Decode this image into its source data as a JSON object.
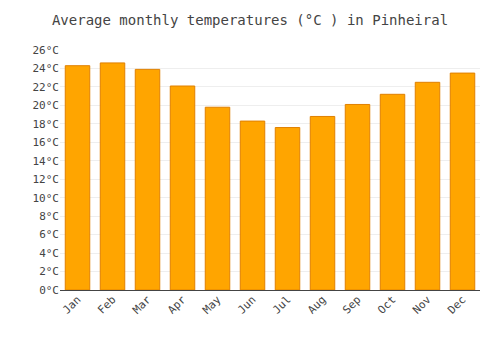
{
  "chart_data": {
    "type": "bar",
    "title": "Average monthly temperatures (°C ) in Pinheiral",
    "categories": [
      "Jan",
      "Feb",
      "Mar",
      "Apr",
      "May",
      "Jun",
      "Jul",
      "Aug",
      "Sep",
      "Oct",
      "Nov",
      "Dec"
    ],
    "values": [
      24.3,
      24.6,
      23.9,
      22.1,
      19.8,
      18.3,
      17.6,
      18.8,
      20.1,
      21.2,
      22.5,
      23.5
    ],
    "color": "#FFA500",
    "ylim": [
      0,
      26
    ],
    "yticks": [
      {
        "value": 0,
        "label": "0°C"
      },
      {
        "value": 2,
        "label": "2°C"
      },
      {
        "value": 4,
        "label": "4°C"
      },
      {
        "value": 6,
        "label": "6°C"
      },
      {
        "value": 8,
        "label": "8°C"
      },
      {
        "value": 10,
        "label": "10°C"
      },
      {
        "value": 12,
        "label": "12°C"
      },
      {
        "value": 14,
        "label": "14°C"
      },
      {
        "value": 16,
        "label": "16°C"
      },
      {
        "value": 18,
        "label": "18°C"
      },
      {
        "value": 20,
        "label": "20°C"
      },
      {
        "value": 22,
        "label": "22°C"
      },
      {
        "value": 24,
        "label": "24°C"
      },
      {
        "value": 26,
        "label": "26°C"
      }
    ],
    "grid": true
  }
}
